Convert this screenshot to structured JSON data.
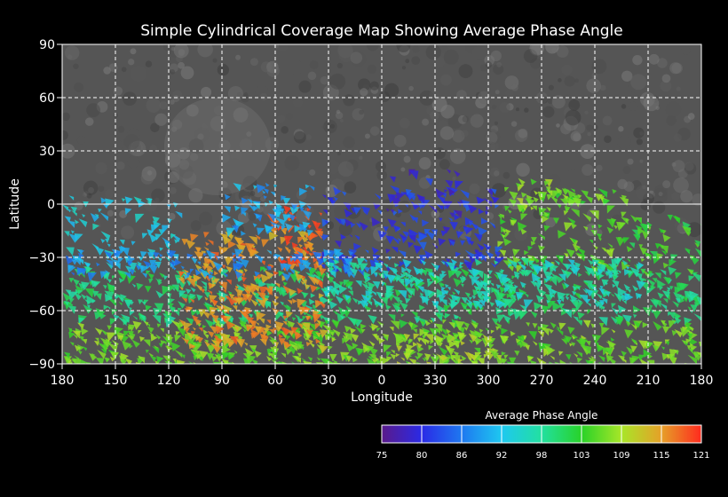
{
  "title": "Simple Cylindrical Coverage Map Showing Average Phase Angle",
  "chart_data": {
    "type": "heatmap",
    "title": "Simple Cylindrical Coverage Map Showing Average Phase Angle",
    "xlabel": "Longitude",
    "ylabel": "Latitude",
    "x_tick_labels": [
      "180",
      "150",
      "120",
      "90",
      "60",
      "30",
      "0",
      "330",
      "300",
      "270",
      "240",
      "210",
      "180"
    ],
    "y_tick_labels": [
      "90",
      "60",
      "30",
      "0",
      "−30",
      "−60",
      "−90"
    ],
    "grid": true,
    "colorbar": {
      "label": "Average Phase Angle",
      "ticks": [
        "75",
        "80",
        "86",
        "92",
        "98",
        "103",
        "109",
        "115",
        "121"
      ],
      "range": [
        75,
        121
      ],
      "stops": [
        "#5a1a8a",
        "#2a2ae6",
        "#1e78f0",
        "#1ec8f0",
        "#22e0a0",
        "#28d228",
        "#a8e628",
        "#e6a028",
        "#ff2a1e"
      ]
    },
    "colors": {
      "background": "#000000",
      "basemap": "#5a5a5a",
      "grid": "#ffffff"
    }
  }
}
